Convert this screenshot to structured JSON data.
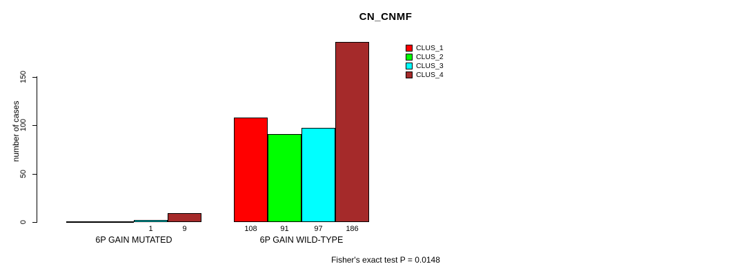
{
  "chart_data": {
    "type": "bar",
    "title": "CN_CNMF",
    "ylabel": "number of cases",
    "xlabel": "",
    "annotation": "Fisher's exact test P = 0.0148",
    "categories": [
      "6P GAIN MUTATED",
      "6P GAIN WILD-TYPE"
    ],
    "series": [
      {
        "name": "CLUS_1",
        "color": "#FF0000",
        "values": [
          0,
          108
        ]
      },
      {
        "name": "CLUS_2",
        "color": "#00FF00",
        "values": [
          0,
          91
        ]
      },
      {
        "name": "CLUS_3",
        "color": "#00FFFF",
        "values": [
          1,
          97
        ]
      },
      {
        "name": "CLUS_4",
        "color": "#A52A2A",
        "values": [
          9,
          186
        ]
      }
    ],
    "bar_labels": [
      [
        "",
        "",
        "1",
        "9"
      ],
      [
        "108",
        "91",
        "97",
        "186"
      ]
    ],
    "yticks": [
      0,
      50,
      100,
      150
    ],
    "ylim": [
      0,
      190
    ],
    "grid": false,
    "legend_position": "top-right",
    "axis_color": "#000000",
    "background_color": "#FFFFFF"
  }
}
